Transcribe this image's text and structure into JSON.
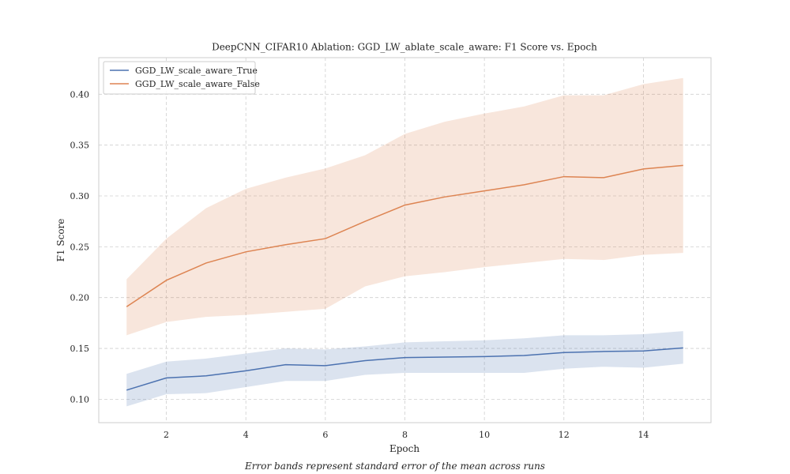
{
  "chart_data": {
    "type": "line",
    "title": "DeepCNN_CIFAR10 Ablation: GGD_LW_ablate_scale_aware: F1 Score vs. Epoch",
    "xlabel": "Epoch",
    "ylabel": "F1 Score",
    "xlim": [
      0.3,
      15.7
    ],
    "ylim": [
      0.077,
      0.436
    ],
    "xticks": [
      2,
      4,
      6,
      8,
      10,
      12,
      14
    ],
    "yticks": [
      0.1,
      0.15,
      0.2,
      0.25,
      0.3,
      0.35,
      0.4
    ],
    "grid": true,
    "legend_position": "top-left",
    "x": [
      1,
      2,
      3,
      4,
      5,
      6,
      7,
      8,
      9,
      10,
      11,
      12,
      13,
      14,
      15
    ],
    "series": [
      {
        "name": "GGD_LW_scale_aware_True",
        "color": "#4c72b0",
        "band_color": "#4c72b0",
        "values": [
          0.109,
          0.121,
          0.123,
          0.128,
          0.134,
          0.133,
          0.138,
          0.141,
          0.1415,
          0.142,
          0.143,
          0.146,
          0.147,
          0.1475,
          0.1505
        ],
        "lower": [
          0.093,
          0.105,
          0.106,
          0.112,
          0.118,
          0.118,
          0.124,
          0.126,
          0.126,
          0.126,
          0.126,
          0.13,
          0.132,
          0.131,
          0.135
        ],
        "upper": [
          0.125,
          0.137,
          0.14,
          0.145,
          0.15,
          0.149,
          0.152,
          0.156,
          0.157,
          0.158,
          0.16,
          0.163,
          0.163,
          0.164,
          0.167
        ]
      },
      {
        "name": "GGD_LW_scale_aware_False",
        "color": "#dd8452",
        "band_color": "#dd8452",
        "values": [
          0.191,
          0.217,
          0.234,
          0.245,
          0.252,
          0.258,
          0.275,
          0.291,
          0.299,
          0.305,
          0.311,
          0.319,
          0.318,
          0.3265,
          0.33
        ],
        "lower": [
          0.163,
          0.176,
          0.181,
          0.183,
          0.186,
          0.189,
          0.211,
          0.221,
          0.225,
          0.23,
          0.234,
          0.238,
          0.237,
          0.242,
          0.244
        ],
        "upper": [
          0.218,
          0.258,
          0.288,
          0.307,
          0.318,
          0.327,
          0.34,
          0.361,
          0.373,
          0.381,
          0.388,
          0.399,
          0.399,
          0.41,
          0.416
        ]
      }
    ],
    "annotation": "Error bands represent standard error of the mean across runs"
  }
}
